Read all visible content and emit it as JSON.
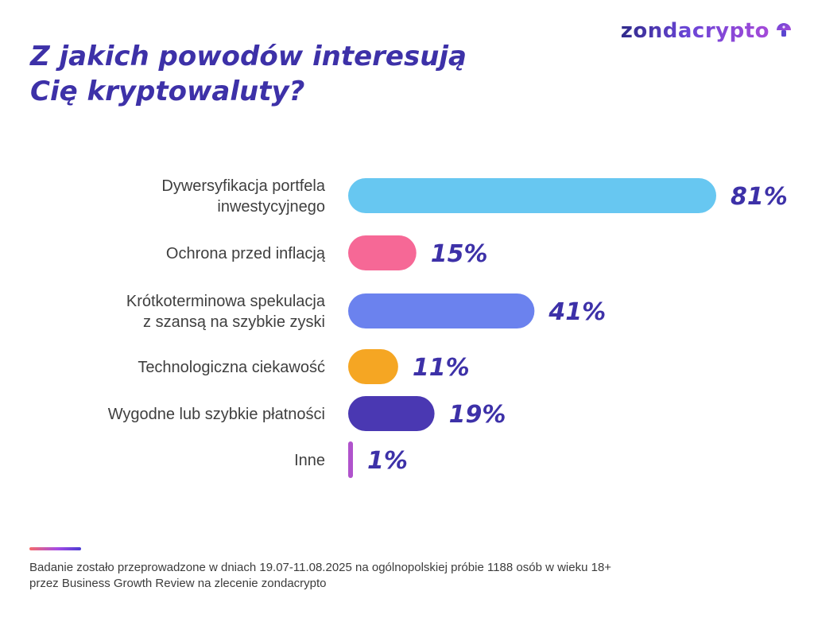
{
  "brand": {
    "name": "zondacrypto",
    "icon_name": "mushroom-logo-icon",
    "colors": {
      "primary": "#3d31a8",
      "accent": "#a54ad8"
    }
  },
  "header": {
    "title": "Z jakich powodów interesują Cię kryptowaluty?"
  },
  "chart_data": {
    "type": "bar",
    "orientation": "horizontal",
    "categories": [
      "Dywersyfikacja portfela inwestycyjnego",
      "Ochrona przed inflacją",
      "Krótkoterminowa spekulacja z szansą na szybkie zyski",
      "Technologiczna ciekawość",
      "Wygodne lub szybkie płatności",
      "Inne"
    ],
    "values": [
      81,
      15,
      41,
      11,
      19,
      1
    ],
    "value_labels": [
      "81%",
      "15%",
      "41%",
      "11%",
      "19%",
      "1%"
    ],
    "colors": [
      "#67c7f1",
      "#f66896",
      "#6b82ee",
      "#f5a623",
      "#4a38b2",
      "#b053cc"
    ],
    "xlim": [
      0,
      81
    ],
    "grid": false,
    "legend": false
  },
  "footer": {
    "note": "Badanie zostało przeprowadzone w dniach 19.07-11.08.2025 na ogólnopolskiej próbie 1188 osób w wieku 18+\nprzez Business Growth Review na zlecenie zondacrypto"
  }
}
